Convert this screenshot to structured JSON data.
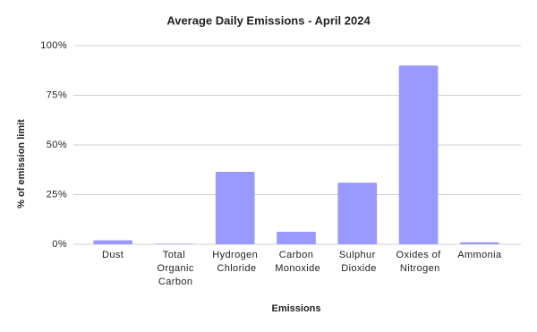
{
  "chart_data": {
    "type": "bar",
    "title": "Average Daily Emissions - April 2024",
    "x_label": "Emissions",
    "y_label": "% of emission limit",
    "categories": [
      "Dust",
      "Total Organic Carbon",
      "Hydrogen Chloride",
      "Carbon Monoxide",
      "Sulphur Dioxide",
      "Oxides of Nitrogen",
      "Ammonia"
    ],
    "values": [
      2,
      0.3,
      36.5,
      6.3,
      31,
      90,
      1
    ],
    "color": "#9999ff",
    "ylim": [
      0,
      100
    ],
    "yticks": [
      {
        "value": 0,
        "label": "0%"
      },
      {
        "value": 25,
        "label": "25%"
      },
      {
        "value": 50,
        "label": "50%"
      },
      {
        "value": 75,
        "label": "75%"
      },
      {
        "value": 100,
        "label": "100%"
      }
    ],
    "grid": true
  }
}
